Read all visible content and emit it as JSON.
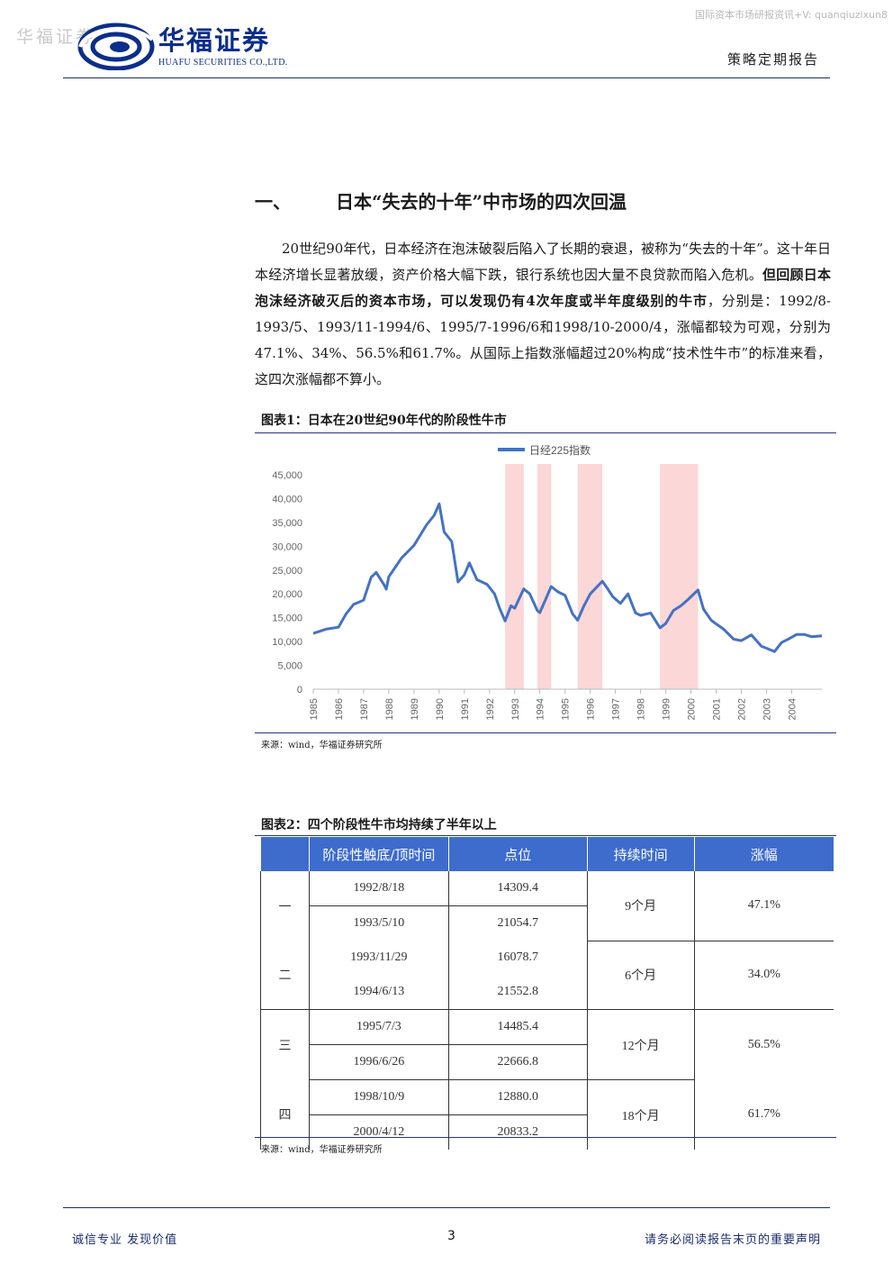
{
  "watermark": {
    "left": "华福证券",
    "right": "国际资本市场研报资讯+V: quanqiuzixun8"
  },
  "header": {
    "logo_cn": "华福证券",
    "logo_en": "HUAFU SECURITIES CO.,LTD.",
    "report_type": "策略定期报告"
  },
  "section": {
    "number": "一、",
    "title": "日本“失去的十年”中市场的四次回温",
    "para_1": "20世纪90年代，日本经济在泡沫破裂后陷入了长期的衰退，被称为“失去的十年”。这十年日本经济增长显著放缓，资产价格大幅下跌，银行系统也因大量不良贷款而陷入危机。",
    "para_bold": "但回顾日本泡沫经济破灭后的资本市场，可以发现仍有4次年度或半年度级别的牛市",
    "para_2": "，分别是：1992/8-1993/5、1993/11-1994/6、1995/7-1996/6和1998/10-2000/4，涨幅都较为可观，分别为47.1%、34%、56.5%和61.7%。从国际上指数涨幅超过20%构成“技术性牛市”的标准来看，这四次涨幅都不算小。"
  },
  "figure1": {
    "title": "图表1：日本在20世纪90年代的阶段性牛市",
    "source": "来源：wind，华福证券研究所"
  },
  "chart_data": {
    "type": "line",
    "legend": "日经225指数",
    "legend_position": "top-center",
    "ylim": [
      0,
      45000
    ],
    "yticks": [
      "0",
      "5,000",
      "10,000",
      "15,000",
      "20,000",
      "25,000",
      "30,000",
      "35,000",
      "40,000",
      "45,000"
    ],
    "xticks": [
      "1985",
      "1986",
      "1987",
      "1988",
      "1989",
      "1990",
      "1991",
      "1992",
      "1993",
      "1994",
      "1995",
      "1996",
      "1997",
      "1998",
      "1999",
      "2000",
      "2001",
      "2002",
      "2003",
      "2004"
    ],
    "xlim": [
      1985.0,
      2005.2
    ],
    "series": [
      {
        "name": "日经225指数",
        "color": "#4472c4",
        "x": [
          1985.0,
          1985.5,
          1986.0,
          1986.3,
          1986.6,
          1987.0,
          1987.3,
          1987.5,
          1987.8,
          1987.9,
          1988.0,
          1988.5,
          1989.0,
          1989.5,
          1989.8,
          1990.0,
          1990.2,
          1990.5,
          1990.75,
          1991.0,
          1991.2,
          1991.5,
          1991.9,
          1992.2,
          1992.4,
          1992.62,
          1992.85,
          1993.0,
          1993.36,
          1993.6,
          1993.9,
          1994.0,
          1994.45,
          1994.7,
          1995.0,
          1995.3,
          1995.5,
          1995.75,
          1996.0,
          1996.48,
          1996.7,
          1996.9,
          1997.2,
          1997.5,
          1997.8,
          1998.0,
          1998.4,
          1998.77,
          1999.0,
          1999.3,
          1999.6,
          1999.9,
          2000.28,
          2000.5,
          2000.8,
          2001.0,
          2001.3,
          2001.7,
          2002.0,
          2002.4,
          2002.8,
          2003.0,
          2003.32,
          2003.6,
          2003.9,
          2004.2,
          2004.5,
          2004.8,
          2005.2
        ],
        "values": [
          11700,
          12600,
          13000,
          15800,
          17800,
          18700,
          23500,
          24500,
          22000,
          21000,
          23600,
          27500,
          30200,
          34500,
          36500,
          38900,
          33000,
          31000,
          22500,
          24000,
          26500,
          23000,
          22000,
          20000,
          17000,
          14309,
          17500,
          17000,
          21055,
          20000,
          16500,
          16079,
          21553,
          20500,
          19700,
          15800,
          14485,
          17500,
          20000,
          22667,
          21000,
          19400,
          18000,
          20000,
          16000,
          15500,
          16000,
          12880,
          13800,
          16500,
          17500,
          18900,
          20833,
          16800,
          14500,
          13700,
          12600,
          10500,
          10200,
          11400,
          9000,
          8600,
          7900,
          9800,
          10600,
          11500,
          11500,
          11000,
          11200
        ]
      }
    ],
    "highlight_periods": [
      [
        1992.62,
        1993.36
      ],
      [
        1993.9,
        1994.45
      ],
      [
        1995.5,
        1996.48
      ],
      [
        1998.77,
        2000.28
      ]
    ],
    "highlight_color": "#fbd7d7"
  },
  "figure2": {
    "title": "图表2：四个阶段性牛市均持续了半年以上",
    "source": "来源：wind，华福证券研究所",
    "headers": [
      "",
      "阶段性触底/顶时间",
      "点位",
      "持续时间",
      "涨幅"
    ],
    "rows": [
      {
        "label": "一",
        "date_low": "1992/8/18",
        "point_low": "14309.4",
        "date_high": "1993/5/10",
        "point_high": "21054.7",
        "duration": "9个月",
        "gain": "47.1%"
      },
      {
        "label": "二",
        "date_low": "1993/11/29",
        "point_low": "16078.7",
        "date_high": "1994/6/13",
        "point_high": "21552.8",
        "duration": "6个月",
        "gain": "34.0%"
      },
      {
        "label": "三",
        "date_low": "1995/7/3",
        "point_low": "14485.4",
        "date_high": "1996/6/26",
        "point_high": "22666.8",
        "duration": "12个月",
        "gain": "56.5%"
      },
      {
        "label": "四",
        "date_low": "1998/10/9",
        "point_low": "12880.0",
        "date_high": "2000/4/12",
        "point_high": "20833.2",
        "duration": "18个月",
        "gain": "61.7%"
      }
    ]
  },
  "footer": {
    "left": "诚信专业  发现价值",
    "page": "3",
    "right": "请务必阅读报告末页的重要声明"
  }
}
